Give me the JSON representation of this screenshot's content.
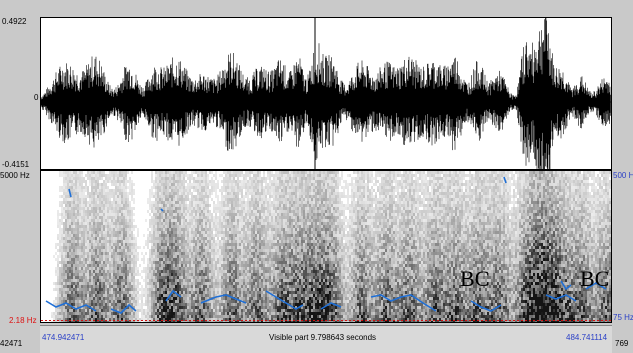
{
  "waveform": {
    "y_max_label": "0.4922",
    "y_zero_label": "0",
    "y_min_label": "-0.4151"
  },
  "spectrogram": {
    "freq_top_left": "5000 Hz",
    "freq_bottom_left": "2.18 Hz",
    "pitch_top_right": "500 Hz",
    "pitch_bottom_right": "75 Hz",
    "annotations": [
      "BC",
      "BC"
    ]
  },
  "time_bar": {
    "left_sample": "42471",
    "start_time": "474.942471",
    "visible_part": "Visible part 9.798643 seconds",
    "end_time": "484.741114",
    "right_sample": "769"
  },
  "colors": {
    "pitch_line": "#1f6fd6",
    "axis_blue": "#2a3fc6",
    "axis_red": "#d11111"
  }
}
